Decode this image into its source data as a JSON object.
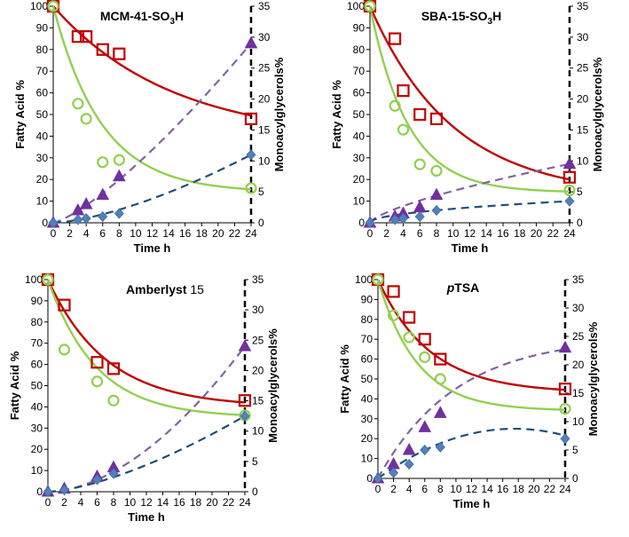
{
  "styles": {
    "fatty_acid_line": "#c00000",
    "fatty_acid_marker": "#c00000",
    "mono_green": "#92d050",
    "purple": "#7030a0",
    "purple_line": "#8064a2",
    "blue_marker": "#4f81bd",
    "blue_line": "#1f4e79"
  },
  "chart_data": [
    {
      "type": "scatter",
      "title": "MCM-41-SO3H",
      "title_main": "MCM-41-SO",
      "title_sub": "3",
      "title_tail": "H",
      "xlabel": "Time h",
      "ylabel": "Fatty Acid %",
      "y2label": "Monoacylglycerols%",
      "xlim": [
        0,
        24
      ],
      "xticks": [
        "0",
        "2",
        "4",
        "6",
        "8",
        "10",
        "12",
        "14",
        "16",
        "18",
        "20",
        "22",
        "24"
      ],
      "ylim": [
        0,
        100
      ],
      "yticks": [
        "0",
        "10",
        "20",
        "30",
        "40",
        "50",
        "60",
        "70",
        "80",
        "90",
        "100"
      ],
      "y2lim": [
        0,
        35
      ],
      "y2ticks": [
        "0",
        "5",
        "10",
        "15",
        "20",
        "25",
        "30",
        "35"
      ],
      "series": [
        {
          "name": "Fatty acid (squares)",
          "axis": "left",
          "marker": "square",
          "x": [
            0,
            3,
            4,
            6,
            8,
            24
          ],
          "y": [
            100,
            86,
            86,
            80,
            78,
            48
          ],
          "fit": {
            "type": "decay",
            "a": 100,
            "c": 38,
            "k": 0.07
          }
        },
        {
          "name": "Fatty acid (circles)",
          "axis": "left",
          "marker": "circle",
          "x": [
            0,
            3,
            4,
            6,
            8,
            24
          ],
          "y": [
            100,
            55,
            48,
            28,
            29,
            16
          ],
          "fit": {
            "type": "decay",
            "a": 100,
            "c": 14,
            "k": 0.17
          }
        },
        {
          "name": "Monoacylglycerols (triangles)",
          "axis": "right",
          "marker": "triangle",
          "x": [
            0,
            3,
            4,
            6,
            8,
            24
          ],
          "y": [
            0,
            2,
            3,
            4.5,
            7.5,
            29
          ],
          "fit": {
            "type": "power",
            "p": 1.3,
            "y24": 29
          }
        },
        {
          "name": "Monoacylglycerols (diamonds)",
          "axis": "right",
          "marker": "diamond",
          "x": [
            0,
            3,
            4,
            6,
            8,
            24
          ],
          "y": [
            0,
            0.5,
            0.7,
            1,
            1.5,
            11
          ],
          "fit": {
            "type": "power",
            "p": 1.5,
            "y24": 11
          }
        }
      ]
    },
    {
      "type": "scatter",
      "title": "SBA-15-SO3H",
      "title_main": "SBA-15-SO",
      "title_sub": "3",
      "title_tail": "H",
      "xlabel": "Time h",
      "ylabel": "Fatty Acid %",
      "y2label": "Monoacylglycerols%",
      "xlim": [
        0,
        24
      ],
      "xticks": [
        "0",
        "2",
        "4",
        "6",
        "8",
        "10",
        "12",
        "14",
        "16",
        "18",
        "20",
        "22",
        "24"
      ],
      "ylim": [
        0,
        100
      ],
      "yticks": [
        "0",
        "10",
        "20",
        "30",
        "40",
        "50",
        "60",
        "70",
        "80",
        "90",
        "100"
      ],
      "y2lim": [
        0,
        35
      ],
      "y2ticks": [
        "0",
        "5",
        "10",
        "15",
        "20",
        "25",
        "30",
        "35"
      ],
      "series": [
        {
          "name": "Fatty acid (squares)",
          "axis": "left",
          "marker": "square",
          "x": [
            0,
            3,
            4,
            6,
            8,
            24
          ],
          "y": [
            100,
            85,
            61,
            50,
            48,
            21
          ],
          "fit": {
            "type": "decay",
            "a": 100,
            "c": 12,
            "k": 0.1
          }
        },
        {
          "name": "Fatty acid (circles)",
          "axis": "left",
          "marker": "circle",
          "x": [
            0,
            3,
            4,
            6,
            8,
            24
          ],
          "y": [
            100,
            54,
            43,
            27,
            24,
            15
          ],
          "fit": {
            "type": "decay",
            "a": 100,
            "c": 14,
            "k": 0.22
          }
        },
        {
          "name": "Monoacylglycerols (triangles)",
          "axis": "right",
          "marker": "triangle",
          "x": [
            0,
            3,
            4,
            6,
            8,
            24
          ],
          "y": [
            0,
            1,
            1.5,
            2.5,
            4.5,
            9.5
          ],
          "fit": {
            "type": "root",
            "p": 0.7,
            "y24": 9.5
          }
        },
        {
          "name": "Monoacylglycerols (diamonds)",
          "axis": "right",
          "marker": "diamond",
          "x": [
            0,
            3,
            4,
            6,
            8,
            24
          ],
          "y": [
            0,
            0.5,
            0.7,
            1,
            2,
            3.5
          ],
          "fit": {
            "type": "root",
            "p": 0.5,
            "y24": 3.5
          }
        }
      ]
    },
    {
      "type": "scatter",
      "title": "Amberlyst 15",
      "title_main": "Amberlyst",
      "title_tail": " 15",
      "xlabel": "Time h",
      "ylabel": "Fatty Acid %",
      "y2label": "Monoacylglycerols%",
      "xlim": [
        0,
        24
      ],
      "xticks": [
        "0",
        "2",
        "4",
        "6",
        "8",
        "10",
        "12",
        "14",
        "16",
        "18",
        "20",
        "22",
        "24"
      ],
      "ylim": [
        0,
        100
      ],
      "yticks": [
        "0",
        "10",
        "20",
        "30",
        "40",
        "50",
        "60",
        "70",
        "80",
        "90",
        "100"
      ],
      "y2lim": [
        0,
        35
      ],
      "y2ticks": [
        "0",
        "5",
        "10",
        "15",
        "20",
        "25",
        "30",
        "35"
      ],
      "series": [
        {
          "name": "Fatty acid (squares)",
          "axis": "left",
          "marker": "square",
          "x": [
            0,
            2,
            6,
            8,
            24
          ],
          "y": [
            100,
            88,
            61,
            58,
            43
          ],
          "fit": {
            "type": "decay",
            "a": 100,
            "c": 40,
            "k": 0.14
          }
        },
        {
          "name": "Fatty acid (circles)",
          "axis": "left",
          "marker": "circle",
          "x": [
            0,
            2,
            6,
            8,
            24
          ],
          "y": [
            100,
            67,
            52,
            43,
            36
          ],
          "fit": {
            "type": "decay",
            "a": 100,
            "c": 35,
            "k": 0.17
          }
        },
        {
          "name": "Monoacylglycerols (triangles)",
          "axis": "right",
          "marker": "triangle",
          "x": [
            0,
            2,
            6,
            8,
            24
          ],
          "y": [
            0,
            0.5,
            2.5,
            4,
            24
          ],
          "fit": {
            "type": "power",
            "p": 1.8,
            "y24": 24
          }
        },
        {
          "name": "Monoacylglycerols (diamonds)",
          "axis": "right",
          "marker": "diamond",
          "x": [
            0,
            2,
            6,
            8,
            24
          ],
          "y": [
            0,
            0.3,
            2,
            3,
            12.5
          ],
          "fit": {
            "type": "power",
            "p": 1.5,
            "y24": 12.5
          }
        }
      ]
    },
    {
      "type": "scatter",
      "title": "pTSA",
      "title_italic": "p",
      "title_tail": "TSA",
      "xlabel": "Time h",
      "ylabel": "Fatty Acid %",
      "y2label": "Monoacylglycerols%",
      "xlim": [
        0,
        24
      ],
      "xticks": [
        "0",
        "2",
        "4",
        "6",
        "8",
        "10",
        "12",
        "14",
        "16",
        "18",
        "20",
        "22",
        "24"
      ],
      "ylim": [
        0,
        100
      ],
      "yticks": [
        "0",
        "10",
        "20",
        "30",
        "40",
        "50",
        "60",
        "70",
        "80",
        "90",
        "100"
      ],
      "y2lim": [
        0,
        35
      ],
      "y2ticks": [
        "0",
        "5",
        "10",
        "15",
        "20",
        "25",
        "30",
        "35"
      ],
      "series": [
        {
          "name": "Fatty acid (squares)",
          "axis": "left",
          "marker": "square",
          "x": [
            0,
            2,
            4,
            6,
            8,
            24
          ],
          "y": [
            100,
            94,
            81,
            70,
            60,
            45
          ],
          "fit": {
            "type": "decay",
            "a": 100,
            "c": 43,
            "k": 0.15
          }
        },
        {
          "name": "Fatty acid (circles)",
          "axis": "left",
          "marker": "circle",
          "x": [
            0,
            2,
            4,
            6,
            8,
            24
          ],
          "y": [
            100,
            82,
            71,
            61,
            50,
            35
          ],
          "fit": {
            "type": "decay",
            "a": 100,
            "c": 34,
            "k": 0.2
          }
        },
        {
          "name": "Monoacylglycerols (triangles)",
          "axis": "right",
          "marker": "triangle",
          "x": [
            0,
            2,
            4,
            6,
            8,
            24
          ],
          "y": [
            0,
            2.5,
            5,
            9,
            11.5,
            23
          ],
          "fit": {
            "type": "saturate",
            "A": 25,
            "k": 0.1
          }
        },
        {
          "name": "Monoacylglycerols (diamonds)",
          "axis": "right",
          "marker": "diamond",
          "x": [
            0,
            2,
            4,
            6,
            8,
            24
          ],
          "y": [
            0,
            1,
            2.5,
            5,
            5.5,
            7
          ],
          "fit": {
            "type": "quad",
            "a": -0.0286,
            "b": 1.0,
            "c": 0
          }
        }
      ]
    }
  ]
}
